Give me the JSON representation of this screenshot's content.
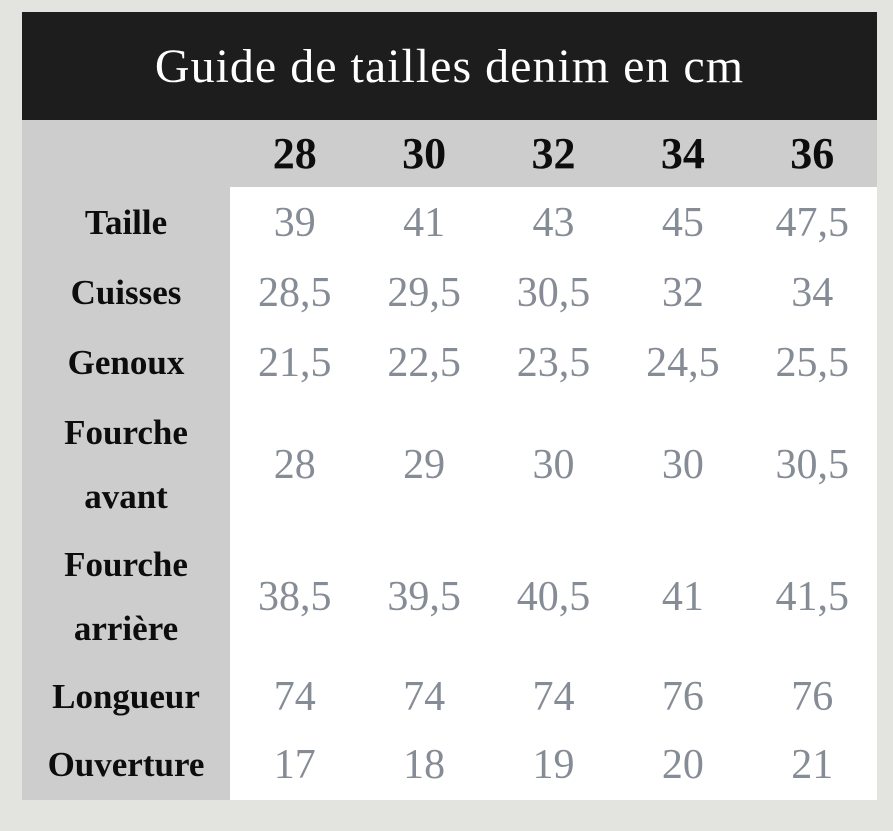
{
  "title": "Guide de tailles denim en cm",
  "table": {
    "unit": "cm",
    "sizes": [
      "28",
      "30",
      "32",
      "34",
      "36"
    ],
    "rows": [
      {
        "label": "Taille",
        "values": [
          "39",
          "41",
          "43",
          "45",
          "47,5"
        ]
      },
      {
        "label": "Cuisses",
        "values": [
          "28,5",
          "29,5",
          "30,5",
          "32",
          "34"
        ]
      },
      {
        "label": "Genoux",
        "values": [
          "21,5",
          "22,5",
          "23,5",
          "24,5",
          "25,5"
        ]
      },
      {
        "label": "Fourche avant",
        "values": [
          "28",
          "29",
          "30",
          "30",
          "30,5"
        ]
      },
      {
        "label": "Fourche arrière",
        "values": [
          "38,5",
          "39,5",
          "40,5",
          "41",
          "41,5"
        ]
      },
      {
        "label": "Longueur",
        "values": [
          "74",
          "74",
          "74",
          "76",
          "76"
        ]
      },
      {
        "label": "Ouverture",
        "values": [
          "17",
          "18",
          "19",
          "20",
          "21"
        ]
      }
    ]
  },
  "colors": {
    "page_bg": "#e3e4df",
    "header_bg": "#1d1d1d",
    "header_text": "#ffffff",
    "cell_gray": "#cdcdcd",
    "data_bg": "#ffffff",
    "data_text": "#868c96",
    "label_text": "#0d0d0d"
  }
}
